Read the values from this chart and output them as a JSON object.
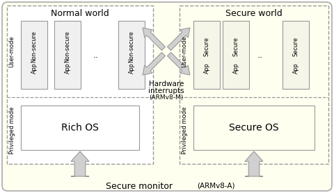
{
  "outer_bg": "#fffff0",
  "white_bg": "#ffffff",
  "secure_world_bg": "#fffff0",
  "normal_world_bg": "#ffffff",
  "app_box_fill": "#f0f0f0",
  "os_box_fill": "#f0f0f0",
  "secure_app_box_fill": "#f5f5e8",
  "secure_os_box_fill": "#f5f5e0",
  "dashed_color": "#999999",
  "solid_color": "#999999",
  "arrow_fill": "#d0d0d0",
  "arrow_edge": "#999999",
  "text_color": "#000000",
  "secure_monitor_text": "Secure monitor",
  "secure_monitor_armv": "(ARMv8-A)",
  "normal_world_title": "Normal world",
  "secure_world_title": "Secure world",
  "hw_line1": "Hardware",
  "hw_line2": "interrupts",
  "hw_line3": "(ARMv8-M)",
  "user_mode": "User-mode",
  "priv_mode": "Privileged mode",
  "rich_os": "Rich OS",
  "secure_os": "Secure OS",
  "non_sec_line1": "Non-secure",
  "non_sec_line2": "App",
  "sec_line1": "Secure",
  "sec_line2": "App",
  "ellipsis": ".."
}
